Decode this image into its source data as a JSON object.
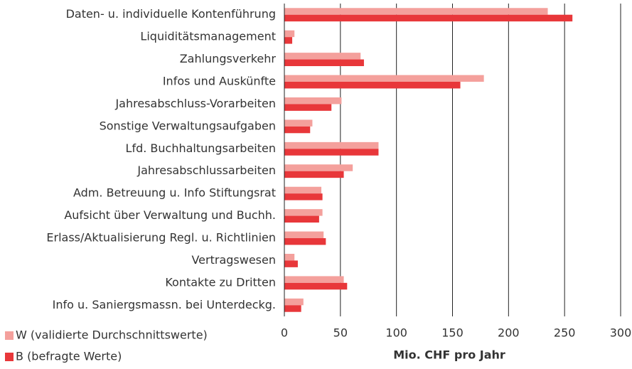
{
  "chart_data": {
    "type": "barh",
    "xlabel": "Mio. CHF pro Jahr",
    "categories": [
      "Daten- u. individuelle Kontenführung",
      "Liquiditätsmanagement",
      "Zahlungsverkehr",
      "Infos und Auskünfte",
      "Jahresabschluss-Vorarbeiten",
      "Sonstige Verwaltungsaufgaben",
      "Lfd. Buchhaltungsarbeiten",
      "Jahresabschlussarbeiten",
      "Adm. Betreuung u. Info Stiftungsrat",
      "Aufsicht über Verwaltung und Buchh.",
      "Erlass/Aktualisierung Regl. u. Richtlinien",
      "Vertragswesen",
      "Kontakte zu Dritten",
      "Info u. Saniergsmassn. bei Unterdeckg."
    ],
    "series": [
      {
        "name": "W (validierte Durchschnittswerte)",
        "color": "#f4a09c",
        "values": [
          235,
          9,
          68,
          178,
          51,
          25,
          84,
          61,
          33,
          34,
          35,
          9,
          53,
          17
        ]
      },
      {
        "name": "B (befragte Werte)",
        "color": "#e8373a",
        "values": [
          257,
          7,
          71,
          157,
          42,
          23,
          84,
          53,
          34,
          31,
          37,
          12,
          56,
          15
        ]
      }
    ],
    "xlim": [
      0,
      300
    ],
    "xticks": [
      0,
      50,
      100,
      150,
      200,
      250,
      300
    ],
    "grid": true,
    "legend": "lower left"
  }
}
